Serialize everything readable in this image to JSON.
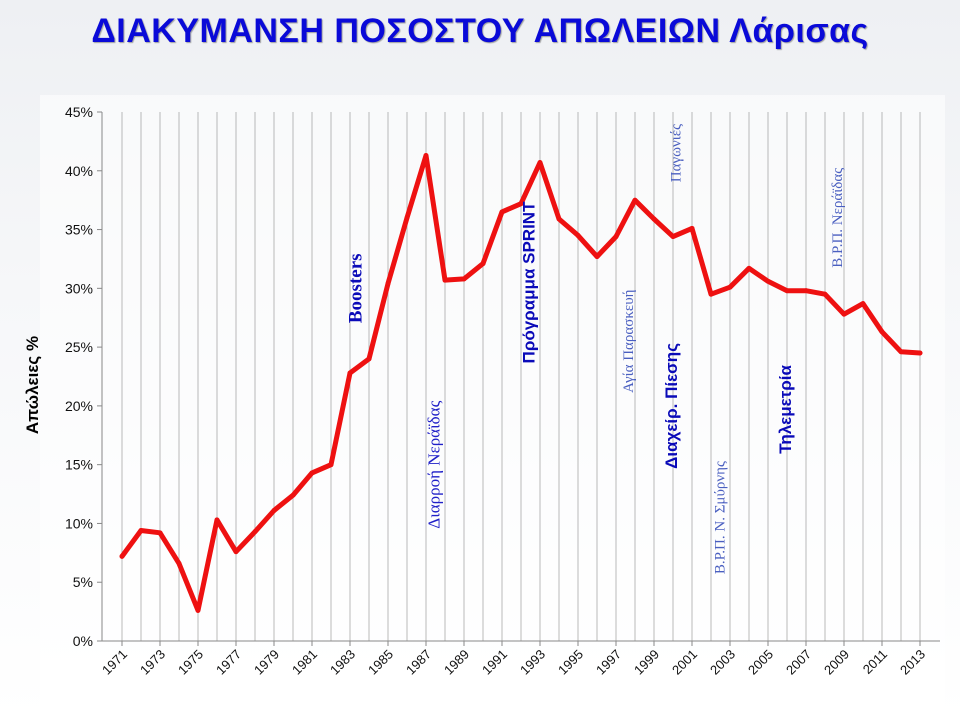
{
  "chart_data": {
    "type": "line",
    "title": "ΔΙΑΚΥΜΑΝΣΗ ΠΟΣΟΣΤΟΥ ΑΠΩΛΕΙΩΝ Λάρισας",
    "xlabel": "",
    "ylabel": "Απώλειες %",
    "ylim": [
      0,
      45
    ],
    "grid": "vertical",
    "line_color": "#ee1111",
    "x": [
      1971,
      1972,
      1973,
      1974,
      1975,
      1976,
      1977,
      1978,
      1979,
      1980,
      1981,
      1982,
      1983,
      1984,
      1985,
      1986,
      1987,
      1988,
      1989,
      1990,
      1991,
      1992,
      1993,
      1994,
      1995,
      1996,
      1997,
      1998,
      1999,
      2000,
      2001,
      2002,
      2003,
      2004,
      2005,
      2006,
      2007,
      2008,
      2009,
      2010,
      2011,
      2012,
      2013
    ],
    "values": [
      7.2,
      9.4,
      9.2,
      6.6,
      2.6,
      10.3,
      7.6,
      9.3,
      11.1,
      12.4,
      14.3,
      15.0,
      22.8,
      24.0,
      30.4,
      36.0,
      41.3,
      30.7,
      30.8,
      32.1,
      36.5,
      37.2,
      40.7,
      35.9,
      34.5,
      32.7,
      34.4,
      37.5,
      35.9,
      34.4,
      35.1,
      29.5,
      30.1,
      31.7,
      30.6,
      29.8,
      29.8,
      29.5,
      27.8,
      28.7,
      26.3,
      24.6,
      24.5
    ],
    "x_tick_labels": [
      "1971",
      "1973",
      "1975",
      "1977",
      "1979",
      "1981",
      "1983",
      "1985",
      "1987",
      "1989",
      "1991",
      "1993",
      "1995",
      "1997",
      "1999",
      "2001",
      "2003",
      "2005",
      "2007",
      "2009",
      "2011",
      "2013"
    ],
    "y_tick_labels": [
      "0%",
      "5%",
      "10%",
      "15%",
      "20%",
      "25%",
      "30%",
      "35%",
      "40%",
      "45%"
    ],
    "annotations": [
      {
        "text": "Boosters",
        "x": 1983.6,
        "y": 30.0,
        "color": "#0a0ab8",
        "font": "serif",
        "size": 19,
        "bold": true
      },
      {
        "text": "Διαρροή Νεράϊδας",
        "x": 1987.7,
        "y": 15.0,
        "color": "#2020c8",
        "font": "serif",
        "size": 17,
        "bold": false
      },
      {
        "text": "Πρόγραμμα SPRINT",
        "x": 1992.7,
        "y": 30.5,
        "color": "#0a0ab8",
        "font": "sans",
        "size": 17,
        "bold": true
      },
      {
        "text": "Αγία Παρασκευή",
        "x": 1997.9,
        "y": 25.5,
        "color": "#4a5fc0",
        "font": "serif",
        "size": 15,
        "bold": false
      },
      {
        "text": "Παγωνιές",
        "x": 2000.4,
        "y": 41.5,
        "color": "#4a5fc0",
        "font": "serif",
        "size": 15,
        "bold": false
      },
      {
        "text": "Διαχείρ. Πίεσης",
        "x": 2000.2,
        "y": 20.0,
        "color": "#0a0ab8",
        "font": "sans",
        "size": 17,
        "bold": true
      },
      {
        "text": "Β.Ρ.Π.  Ν. Σμύρνης",
        "x": 2002.7,
        "y": 10.5,
        "color": "#4a5fc0",
        "font": "serif",
        "size": 15,
        "bold": false
      },
      {
        "text": "Τηλεμετρία",
        "x": 2006.2,
        "y": 19.7,
        "color": "#0a0ab8",
        "font": "sans",
        "size": 17,
        "bold": true
      },
      {
        "text": "Β.Ρ.Π.  Νεράϊδας",
        "x": 2008.9,
        "y": 36.0,
        "color": "#4a5fc0",
        "font": "serif",
        "size": 15,
        "bold": false
      }
    ]
  }
}
